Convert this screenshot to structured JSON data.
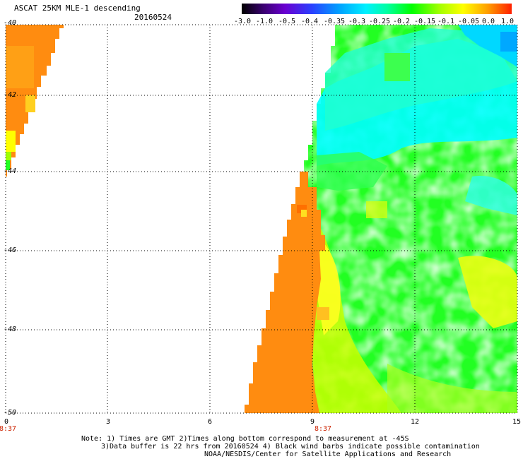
{
  "header": {
    "title": "ASCAT 25KM MLE-1 descending",
    "date": "20160524"
  },
  "colorbar": {
    "labels": [
      "-3.0",
      "-1.0",
      "-0.5",
      "-0.4",
      "-0.35",
      "-0.3",
      "-0.25",
      "-0.2",
      "-0.15",
      "-0.1",
      "-0.05",
      "0.0",
      "1.0"
    ]
  },
  "map": {
    "lat_labels": [
      "-40",
      "-42",
      "-44",
      "-46",
      "-48",
      "-50"
    ],
    "lon_labels": [
      "0",
      "3",
      "6",
      "9",
      "12",
      "15"
    ],
    "time_labels": [
      "8:37",
      "8:37"
    ],
    "lat_range": [
      -50,
      -40
    ],
    "lon_range": [
      0,
      15
    ],
    "grid": true
  },
  "notes": {
    "line1": "Note: 1) Times are GMT 2)Times along bottom correspond to measurement at -45S",
    "line2": "3)Data buffer is 22 hrs from 20160524 4) Black wind barbs indicate possible contamination",
    "line3": "NOAA/NESDIS/Center for Satellite Applications and Research"
  },
  "colors": {
    "orange": "#ff8800",
    "yellow": "#ffff00",
    "green": "#22ff22",
    "cyan": "#00ffff",
    "blue": "#00a0ff"
  }
}
